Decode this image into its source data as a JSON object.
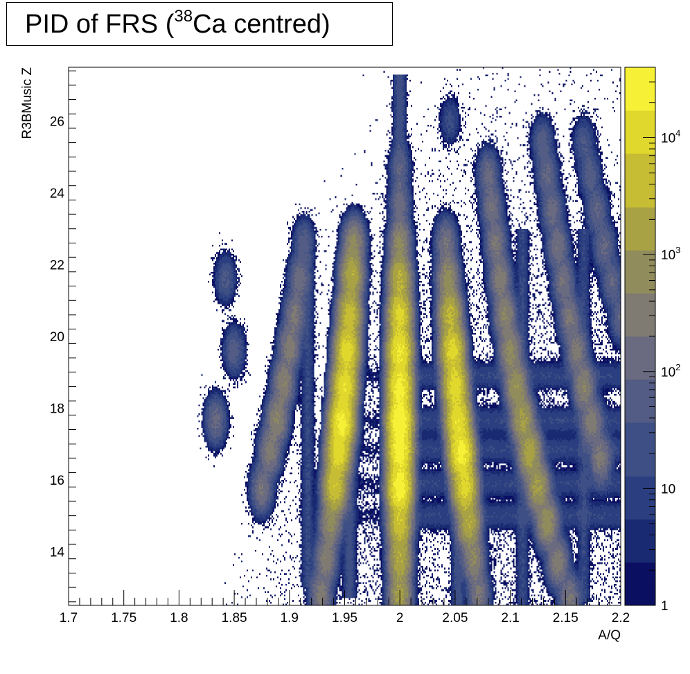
{
  "chart_data": {
    "type": "heatmap",
    "title_prefix": "PID of FRS (",
    "title_sup": "38",
    "title_suffix": "Ca centred)",
    "xlabel": "A/Q",
    "ylabel": "R3BMusic Z",
    "xlim": [
      1.7,
      2.2
    ],
    "ylim": [
      12.5,
      27.5
    ],
    "x_ticks": [
      1.7,
      1.75,
      1.8,
      1.85,
      1.9,
      1.95,
      2.0,
      2.05,
      2.1,
      2.15,
      2.2
    ],
    "x_tick_labels": [
      "1.7",
      "1.75",
      "1.8",
      "1.85",
      "1.9",
      "1.95",
      "2",
      "2.05",
      "2.1",
      "2.15",
      "2.2"
    ],
    "y_ticks": [
      14,
      16,
      18,
      20,
      22,
      24,
      26
    ],
    "y_tick_labels": [
      "14",
      "16",
      "18",
      "20",
      "22",
      "24",
      "26"
    ],
    "z_scale": "log",
    "zlim": [
      1,
      40000
    ],
    "z_ticks": [
      1,
      10,
      100,
      1000,
      10000
    ],
    "z_tick_labels": [
      {
        "base": "1",
        "exp": ""
      },
      {
        "base": "10",
        "exp": ""
      },
      {
        "base": "10",
        "exp": "2"
      },
      {
        "base": "10",
        "exp": "3"
      },
      {
        "base": "10",
        "exp": "4"
      }
    ],
    "palette": [
      "#0a0f62",
      "#1a2a72",
      "#2b3f80",
      "#3e4f85",
      "#535c84",
      "#6a6a80",
      "#7f7a72",
      "#918c5c",
      "#a9a244",
      "#c6bd34",
      "#e0d82c",
      "#f6f037"
    ],
    "lines": [
      {
        "aq": 1.9167,
        "z_from": 13.0,
        "z_to": 22.3,
        "intensity": 0.6
      },
      {
        "aq": 1.9545,
        "z_from": 12.7,
        "z_to": 22.7,
        "intensity": 0.95
      },
      {
        "aq": 2.0,
        "z_from": 12.5,
        "z_to": 27.3,
        "intensity": 1.0
      },
      {
        "aq": 2.0526,
        "z_from": 12.5,
        "z_to": 21.0,
        "intensity": 0.9
      },
      {
        "aq": 2.1111,
        "z_from": 12.5,
        "z_to": 23.0,
        "intensity": 0.55
      },
      {
        "aq": 2.1667,
        "z_from": 12.6,
        "z_to": 23.0,
        "intensity": 0.5
      }
    ],
    "z_bands": [
      15.0,
      15.9,
      16.85,
      17.65,
      18.9
    ],
    "blobs": [
      {
        "aq": 1.8333,
        "z": 17.65,
        "c": 120
      },
      {
        "aq": 1.85,
        "z": 19.6,
        "c": 60
      },
      {
        "aq": 1.8421,
        "z": 21.6,
        "c": 40
      },
      {
        "aq": 1.875,
        "z": 15.75,
        "c": 200
      },
      {
        "aq": 1.8824,
        "z": 16.8,
        "c": 350
      },
      {
        "aq": 1.8889,
        "z": 17.7,
        "c": 500
      },
      {
        "aq": 1.8947,
        "z": 18.7,
        "c": 450
      },
      {
        "aq": 1.9,
        "z": 19.7,
        "c": 350
      },
      {
        "aq": 1.9048,
        "z": 20.6,
        "c": 250
      },
      {
        "aq": 1.9091,
        "z": 21.6,
        "c": 150
      },
      {
        "aq": 1.913,
        "z": 22.6,
        "c": 60
      },
      {
        "aq": 1.9286,
        "z": 12.8,
        "c": 300
      },
      {
        "aq": 1.9333,
        "z": 13.8,
        "c": 400
      },
      {
        "aq": 1.9375,
        "z": 14.8,
        "c": 700
      },
      {
        "aq": 1.9412,
        "z": 15.8,
        "c": 6000
      },
      {
        "aq": 1.9444,
        "z": 16.75,
        "c": 12000
      },
      {
        "aq": 1.9474,
        "z": 17.6,
        "c": 25000
      },
      {
        "aq": 1.95,
        "z": 18.6,
        "c": 15000
      },
      {
        "aq": 1.9524,
        "z": 19.6,
        "c": 12000
      },
      {
        "aq": 1.9545,
        "z": 20.6,
        "c": 5000
      },
      {
        "aq": 1.9565,
        "z": 21.7,
        "c": 2500
      },
      {
        "aq": 1.9583,
        "z": 22.6,
        "c": 600
      },
      {
        "aq": 2.0,
        "z": 12.8,
        "c": 1500
      },
      {
        "aq": 2.0,
        "z": 13.8,
        "c": 2500
      },
      {
        "aq": 2.0,
        "z": 14.8,
        "c": 6000
      },
      {
        "aq": 2.0,
        "z": 15.8,
        "c": 30000
      },
      {
        "aq": 2.0,
        "z": 16.8,
        "c": 30000
      },
      {
        "aq": 2.0,
        "z": 17.65,
        "c": 40000
      },
      {
        "aq": 2.0,
        "z": 18.6,
        "c": 25000
      },
      {
        "aq": 2.0,
        "z": 19.6,
        "c": 20000
      },
      {
        "aq": 2.0,
        "z": 20.6,
        "c": 9000
      },
      {
        "aq": 2.0,
        "z": 21.6,
        "c": 3000
      },
      {
        "aq": 2.0,
        "z": 22.6,
        "c": 600
      },
      {
        "aq": 2.0714,
        "z": 12.8,
        "c": 250
      },
      {
        "aq": 2.0667,
        "z": 13.8,
        "c": 500
      },
      {
        "aq": 2.0625,
        "z": 14.8,
        "c": 2500
      },
      {
        "aq": 2.0588,
        "z": 15.8,
        "c": 10000
      },
      {
        "aq": 2.0556,
        "z": 16.75,
        "c": 25000
      },
      {
        "aq": 2.0526,
        "z": 17.65,
        "c": 15000
      },
      {
        "aq": 2.05,
        "z": 18.6,
        "c": 12000
      },
      {
        "aq": 2.0476,
        "z": 19.6,
        "c": 10000
      },
      {
        "aq": 2.0455,
        "z": 20.6,
        "c": 3500
      },
      {
        "aq": 2.0435,
        "z": 21.6,
        "c": 800
      },
      {
        "aq": 2.0417,
        "z": 22.6,
        "c": 200
      },
      {
        "aq": 2.0,
        "z": 23.7,
        "c": 120
      },
      {
        "aq": 2.0,
        "z": 24.7,
        "c": 60
      },
      {
        "aq": 2.1429,
        "z": 13.7,
        "c": 350
      },
      {
        "aq": 2.1333,
        "z": 14.8,
        "c": 900
      },
      {
        "aq": 2.125,
        "z": 15.8,
        "c": 1500
      },
      {
        "aq": 2.1176,
        "z": 16.75,
        "c": 2000
      },
      {
        "aq": 2.1111,
        "z": 17.7,
        "c": 1500
      },
      {
        "aq": 2.1053,
        "z": 18.6,
        "c": 1000
      },
      {
        "aq": 2.1,
        "z": 19.6,
        "c": 700
      },
      {
        "aq": 2.0952,
        "z": 20.6,
        "c": 500
      },
      {
        "aq": 2.0909,
        "z": 21.6,
        "c": 350
      },
      {
        "aq": 2.087,
        "z": 22.6,
        "c": 250
      },
      {
        "aq": 2.0833,
        "z": 23.6,
        "c": 180
      },
      {
        "aq": 2.08,
        "z": 24.5,
        "c": 120
      },
      {
        "aq": 2.1538,
        "z": 12.7,
        "c": 250
      },
      {
        "aq": 2.1818,
        "z": 16.6,
        "c": 300
      },
      {
        "aq": 2.1739,
        "z": 17.6,
        "c": 350
      },
      {
        "aq": 2.1667,
        "z": 18.6,
        "c": 450
      },
      {
        "aq": 2.16,
        "z": 19.6,
        "c": 300
      },
      {
        "aq": 2.1538,
        "z": 20.5,
        "c": 250
      },
      {
        "aq": 2.1481,
        "z": 21.5,
        "c": 200
      },
      {
        "aq": 2.1429,
        "z": 22.5,
        "c": 180
      },
      {
        "aq": 2.1379,
        "z": 23.5,
        "c": 130
      },
      {
        "aq": 2.1333,
        "z": 24.5,
        "c": 100
      },
      {
        "aq": 2.129,
        "z": 25.4,
        "c": 60
      },
      {
        "aq": 2.2,
        "z": 20.5,
        "c": 80
      },
      {
        "aq": 2.1923,
        "z": 21.5,
        "c": 90
      },
      {
        "aq": 2.1852,
        "z": 22.5,
        "c": 110
      },
      {
        "aq": 2.1786,
        "z": 23.5,
        "c": 90
      },
      {
        "aq": 2.1724,
        "z": 24.5,
        "c": 60
      },
      {
        "aq": 2.1667,
        "z": 25.4,
        "c": 40
      },
      {
        "aq": 2.0455,
        "z": 26.0,
        "c": 20
      }
    ]
  }
}
